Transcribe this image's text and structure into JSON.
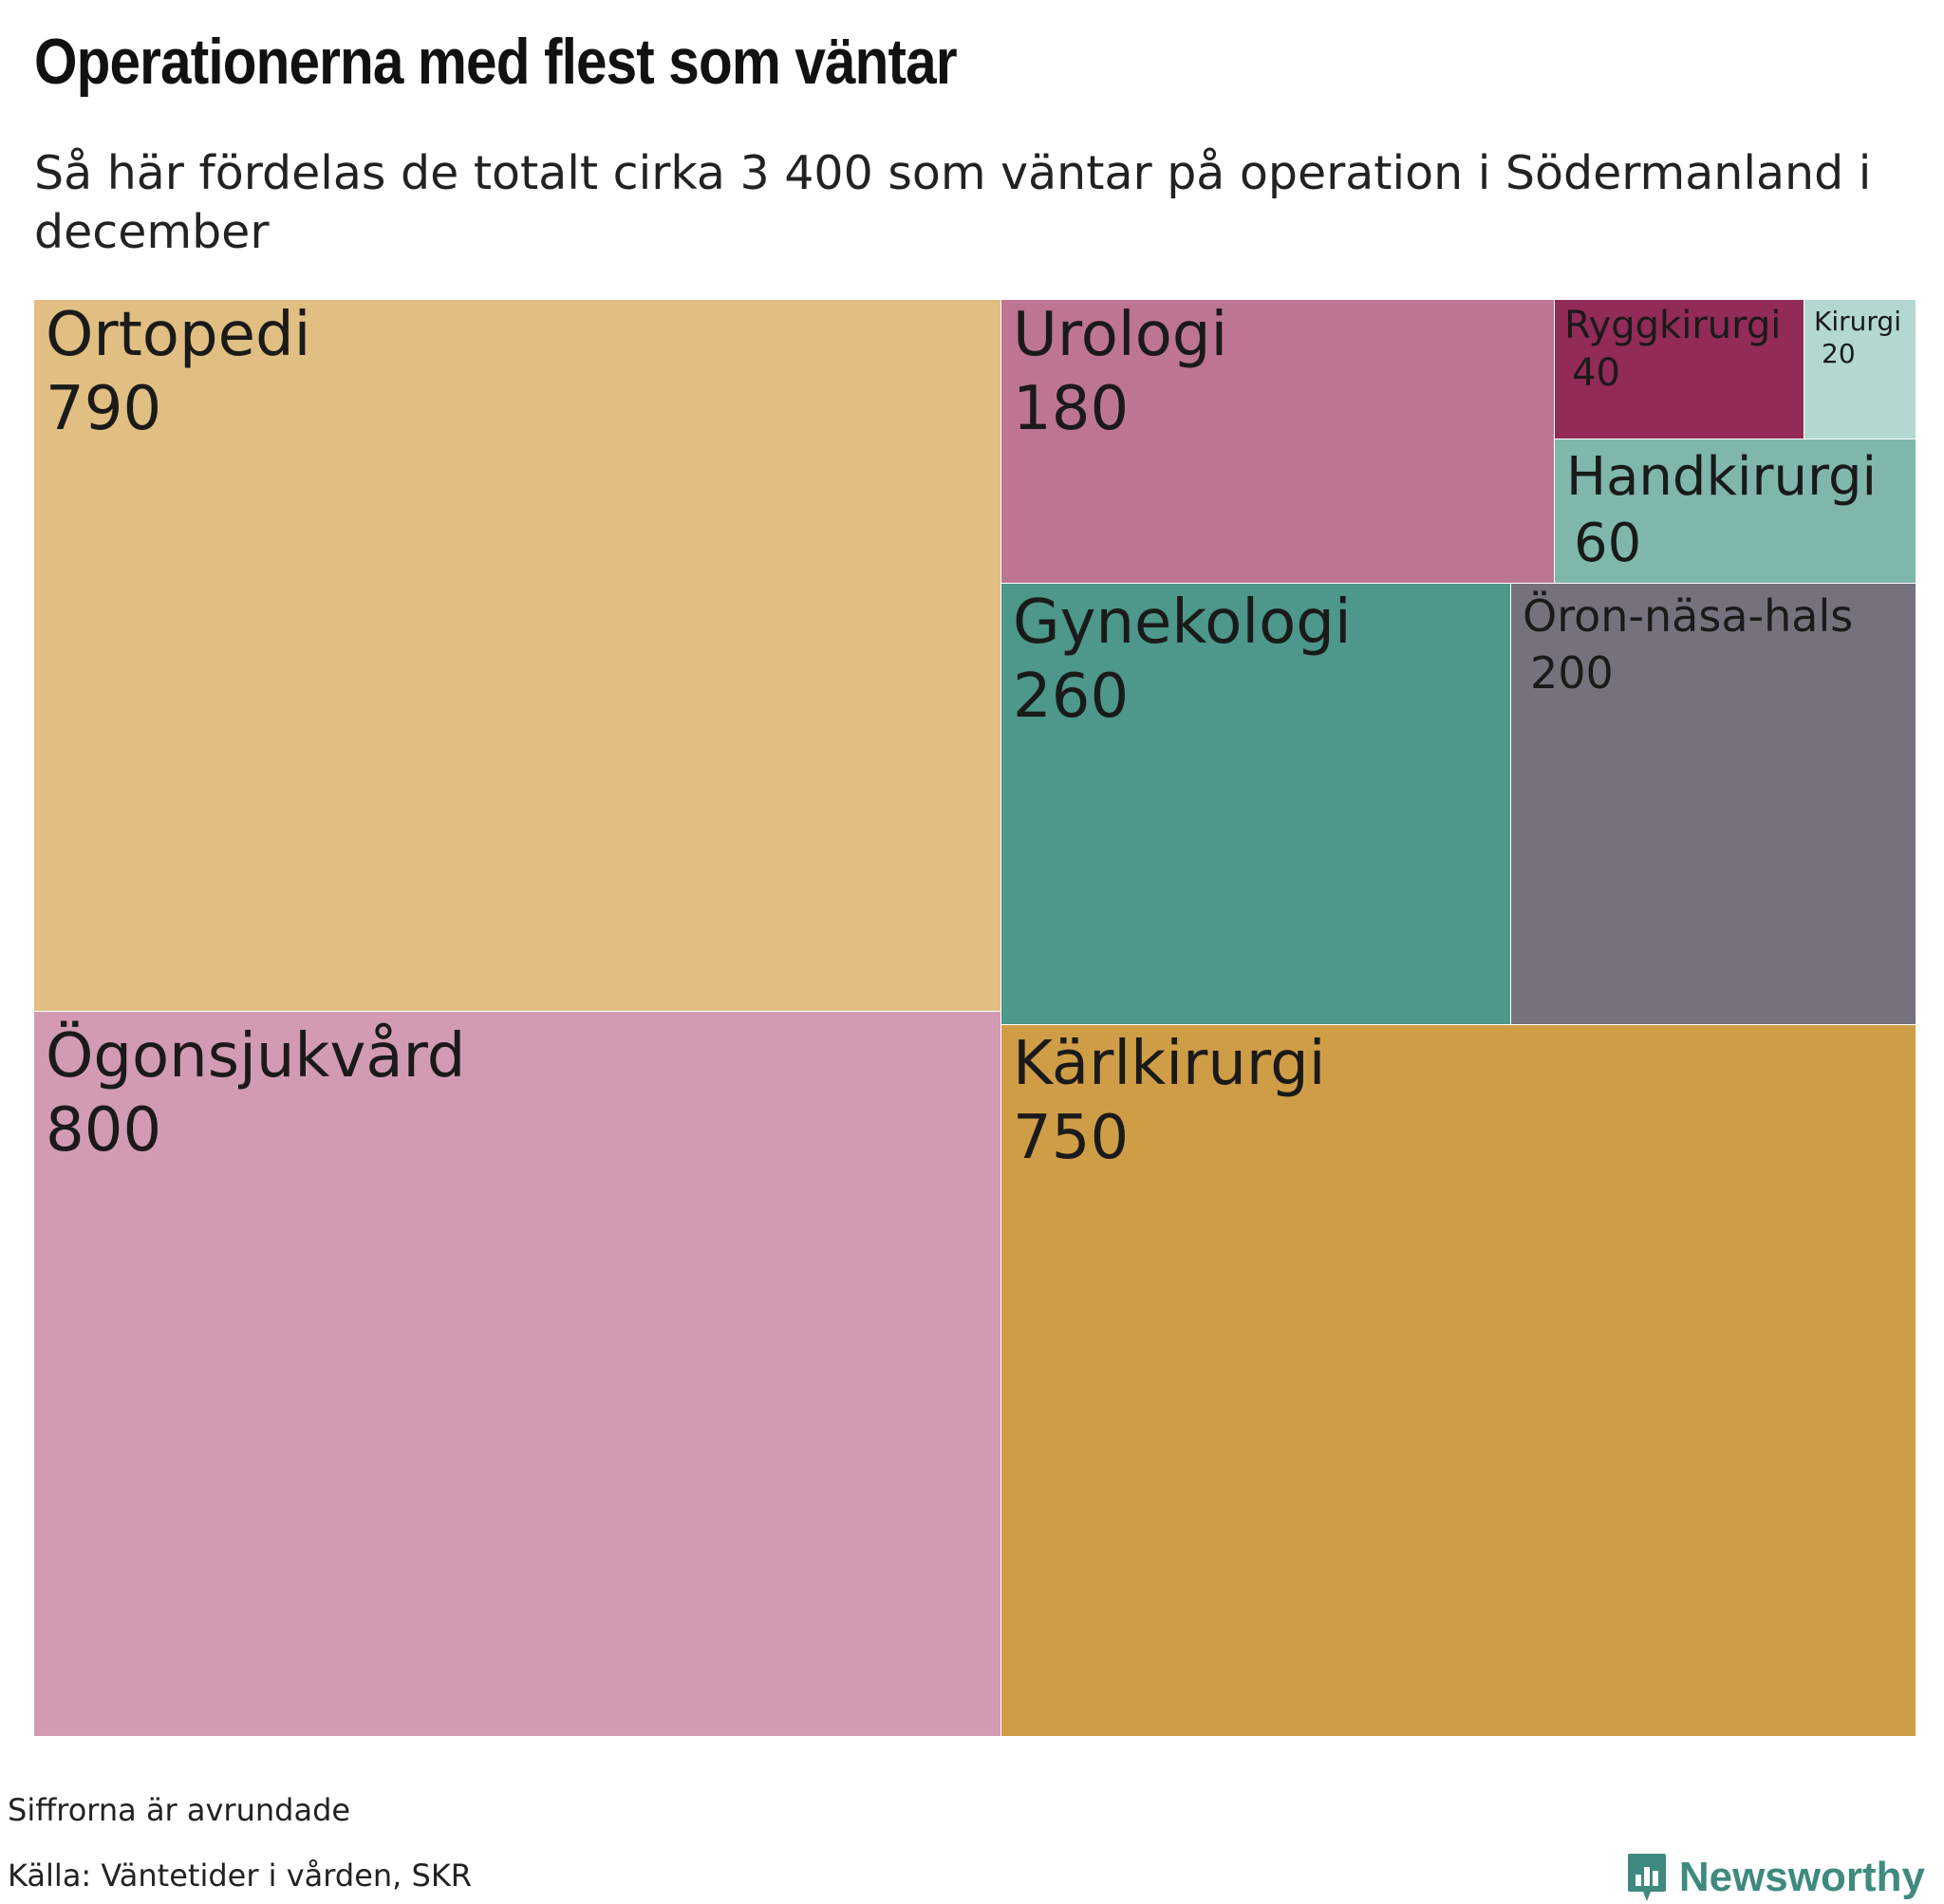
{
  "header": {
    "title": "Operationerna med flest som väntar",
    "subtitle": "Så här fördelas de totalt cirka 3 400 som väntar på operation i Södermanland i december"
  },
  "chart_data": {
    "type": "treemap",
    "items": [
      {
        "name": "Ögonsjukvård",
        "value": 800,
        "value_label": "800",
        "color": "#d39bb3"
      },
      {
        "name": "Ortopedi",
        "value": 790,
        "value_label": "790",
        "color": "#e1be81"
      },
      {
        "name": "Kärlkirurgi",
        "value": 750,
        "value_label": "750",
        "color": "#d09d47"
      },
      {
        "name": "Gynekologi",
        "value": 260,
        "value_label": "260",
        "color": "#4d978b"
      },
      {
        "name": "Öron-näsa-hals",
        "value": 200,
        "value_label": "200",
        "color": "#75727e"
      },
      {
        "name": "Urologi",
        "value": 180,
        "value_label": "180",
        "color": "#be7591"
      },
      {
        "name": "Handkirurgi",
        "value": 60,
        "value_label": "60",
        "color": "#7fb7ad"
      },
      {
        "name": "Ryggkirurgi",
        "value": 40,
        "value_label": "40",
        "color": "#922b58"
      },
      {
        "name": "Kirurgi",
        "value": 20,
        "value_label": "20",
        "color": "#b3d8d1"
      }
    ]
  },
  "footer": {
    "note": "Siffrorna är avrundade",
    "source": "Källa: Väntetider i vården, SKR",
    "brand": "Newsworthy"
  }
}
